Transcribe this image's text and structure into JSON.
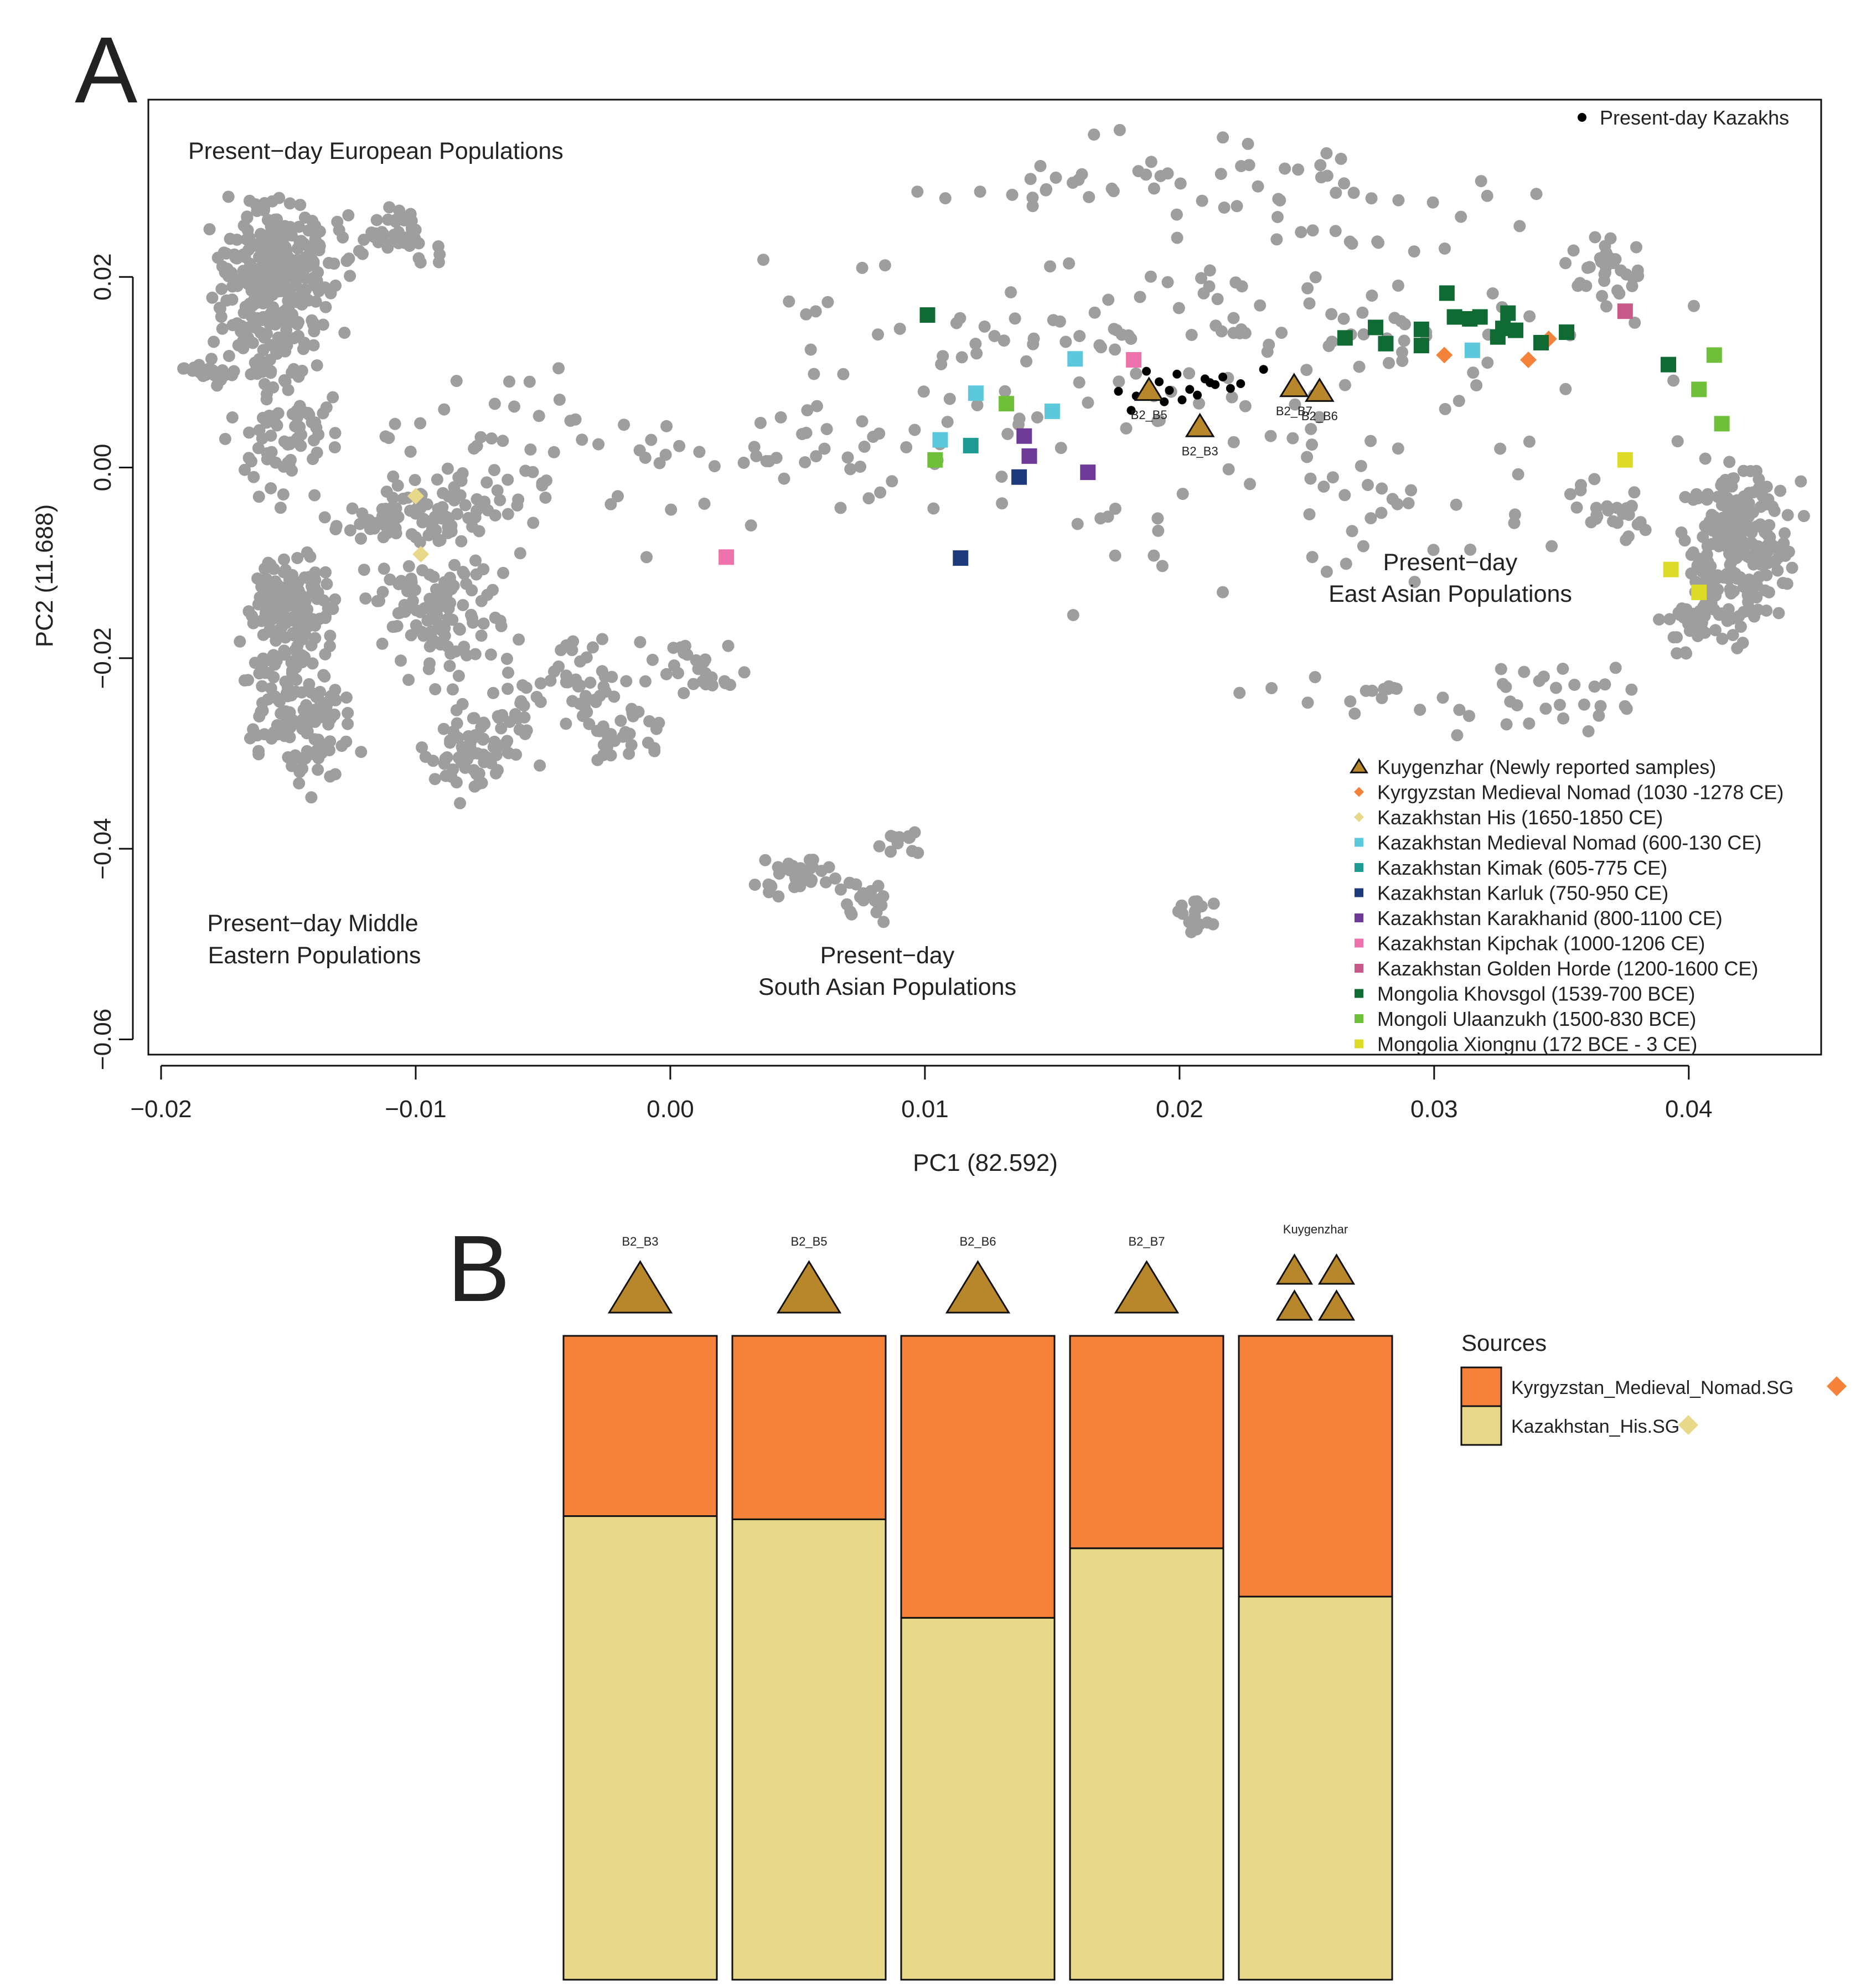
{
  "colors": {
    "background": "#9e9e9e",
    "kazakhs": "#000000",
    "kuygenzhar": "#b8862b",
    "kyrgyzstan_medieval_nomad": "#f4823a",
    "kazakhstan_his": "#e8d98a",
    "kazakhstan_medieval_nomad": "#5bc8dc",
    "kazakhstan_kimak": "#1e9a92",
    "kazakhstan_karluk": "#1f3a7a",
    "kazakhstan_karakhanid": "#6e3a98",
    "kazakhstan_kipchak": "#ee72ac",
    "kazakhstan_golden_horde": "#c85a8a",
    "mongolia_khovsgol": "#0f6b33",
    "mongoli_ulaanzukh": "#6fbf3a",
    "mongolia_xiongnu": "#dcdc28",
    "bar_orange": "#f4823a",
    "bar_yellow": "#e8d98a"
  },
  "panel_a": {
    "letter": "A",
    "regions": {
      "european": "Present−day European Populations",
      "middle_eastern_1": "Present−day  Middle",
      "middle_eastern_2": "Eastern Populations",
      "south_asian_1": "Present−day",
      "south_asian_2": "South Asian Populations",
      "east_asian_1": "Present−day",
      "east_asian_2": "East Asian Populations"
    },
    "kazakhs_legend": "Present-day Kazakhs",
    "legend": [
      {
        "label": "Kuygenzhar (Newly reported samples)",
        "color": "#b8862b",
        "shape": "triangle"
      },
      {
        "label": "Kyrgyzstan Medieval Nomad (1030 -1278 CE)",
        "color": "#f4823a",
        "shape": "diamond"
      },
      {
        "label": "Kazakhstan His (1650-1850 CE)",
        "color": "#e8d98a",
        "shape": "diamond"
      },
      {
        "label": "Kazakhstan Medieval Nomad (600-130 CE)",
        "color": "#5bc8dc",
        "shape": "square"
      },
      {
        "label": "Kazakhstan Kimak (605-775 CE)",
        "color": "#1e9a92",
        "shape": "square"
      },
      {
        "label": "Kazakhstan Karluk (750-950 CE)",
        "color": "#1f3a7a",
        "shape": "square"
      },
      {
        "label": "Kazakhstan Karakhanid (800-1100 CE)",
        "color": "#6e3a98",
        "shape": "square"
      },
      {
        "label": "Kazakhstan Kipchak (1000-1206 CE)",
        "color": "#ee72ac",
        "shape": "square"
      },
      {
        "label": "Kazakhstan Golden Horde (1200-1600 CE)",
        "color": "#c85a8a",
        "shape": "square"
      },
      {
        "label": "Mongolia Khovsgol (1539-700 BCE)",
        "color": "#0f6b33",
        "shape": "square"
      },
      {
        "label": "Mongoli Ulaanzukh (1500-830 BCE)",
        "color": "#6fbf3a",
        "shape": "square"
      },
      {
        "label": "Mongolia Xiongnu (172 BCE - 3 CE)",
        "color": "#dcdc28",
        "shape": "square"
      }
    ]
  },
  "panel_b": {
    "letter": "B",
    "sources_title": "Sources",
    "sources": [
      {
        "label": "Kyrgyzstan_Medieval_Nomad.SG",
        "color": "#f4823a"
      },
      {
        "label": "Kazakhstan_His.SG",
        "color": "#e8d98a"
      }
    ]
  },
  "chart_data": [
    {
      "type": "scatter",
      "title": "",
      "xlabel": "PC1 (82.592)",
      "ylabel": "PC2 (11.688)",
      "xlim": [
        -0.0205,
        0.0452
      ],
      "ylim": [
        -0.0616,
        0.0386
      ],
      "xticks": [
        -0.02,
        -0.01,
        0.0,
        0.01,
        0.02,
        0.03,
        0.04
      ],
      "xtick_labels": [
        "−0.02",
        "−0.01",
        "0.00",
        "0.01",
        "0.02",
        "0.03",
        "0.04"
      ],
      "yticks": [
        0.02,
        0.0,
        -0.02,
        -0.04,
        -0.06
      ],
      "ytick_labels": [
        "0.02",
        "0.00",
        "−0.02",
        "−0.04",
        "−0.06"
      ],
      "series": [
        {
          "name": "Present-day Kazakhs",
          "key": "kazakhs",
          "shape": "circle",
          "points": [
            [
              0.0176,
              0.008
            ],
            [
              0.0183,
              0.0075
            ],
            [
              0.0187,
              0.0101
            ],
            [
              0.0192,
              0.009
            ],
            [
              0.0196,
              0.0081
            ],
            [
              0.0199,
              0.0098
            ],
            [
              0.0201,
              0.0071
            ],
            [
              0.0204,
              0.0082
            ],
            [
              0.0207,
              0.0076
            ],
            [
              0.021,
              0.0093
            ],
            [
              0.0214,
              0.0087
            ],
            [
              0.0217,
              0.0095
            ],
            [
              0.022,
              0.0083
            ],
            [
              0.0224,
              0.0088
            ],
            [
              0.0233,
              0.0103
            ],
            [
              0.0181,
              0.006
            ],
            [
              0.0194,
              0.0069
            ],
            [
              0.0212,
              0.0089
            ]
          ]
        },
        {
          "name": "Kuygenzhar (Newly reported samples)",
          "key": "kuygenzhar",
          "shape": "triangle",
          "points": [
            [
              0.0208,
              0.0043,
              "B2_B3"
            ],
            [
              0.0188,
              0.0081,
              "B2_B5"
            ],
            [
              0.0255,
              0.008,
              "B2_B6"
            ],
            [
              0.0245,
              0.0085,
              "B2_B7"
            ]
          ]
        },
        {
          "name": "Kyrgyzstan Medieval Nomad (1030 -1278 CE)",
          "key": "kyrgyzstan_medieval_nomad",
          "shape": "diamond",
          "points": [
            [
              0.0304,
              0.0118
            ],
            [
              0.0337,
              0.0113
            ],
            [
              0.0345,
              0.0135
            ]
          ]
        },
        {
          "name": "Kazakhstan His (1650-1850 CE)",
          "key": "kazakhstan_his",
          "shape": "diamond",
          "points": [
            [
              -0.01,
              -0.003
            ],
            [
              -0.0098,
              -0.0091
            ]
          ]
        },
        {
          "name": "Kazakhstan Medieval Nomad (600-130 CE)",
          "key": "kazakhstan_medieval_nomad",
          "shape": "square",
          "points": [
            [
              0.0106,
              0.0029
            ],
            [
              0.012,
              0.0078
            ],
            [
              0.015,
              0.0059
            ],
            [
              0.0159,
              0.0114
            ],
            [
              0.0315,
              0.0123
            ]
          ]
        },
        {
          "name": "Kazakhstan Kimak (605-775 CE)",
          "key": "kazakhstan_kimak",
          "shape": "square",
          "points": [
            [
              0.0118,
              0.0023
            ]
          ]
        },
        {
          "name": "Kazakhstan Karluk (750-950 CE)",
          "key": "kazakhstan_karluk",
          "shape": "square",
          "points": [
            [
              0.0114,
              -0.0095
            ],
            [
              0.0137,
              -0.001
            ]
          ]
        },
        {
          "name": "Kazakhstan Karakhanid (800-1100 CE)",
          "key": "kazakhstan_karakhanid",
          "shape": "square",
          "points": [
            [
              0.0139,
              0.0033
            ],
            [
              0.0141,
              0.0012
            ],
            [
              0.0164,
              -0.0005
            ]
          ]
        },
        {
          "name": "Kazakhstan Kipchak (1000-1206 CE)",
          "key": "kazakhstan_kipchak",
          "shape": "square",
          "points": [
            [
              0.0022,
              -0.0094
            ],
            [
              0.0182,
              0.0113
            ]
          ]
        },
        {
          "name": "Kazakhstan Golden Horde (1200-1600 CE)",
          "key": "kazakhstan_golden_horde",
          "shape": "square",
          "points": [
            [
              0.0375,
              0.0164
            ]
          ]
        },
        {
          "name": "Mongolia Khovsgol (1539-700 BCE)",
          "key": "mongolia_khovsgol",
          "shape": "square",
          "points": [
            [
              0.0101,
              0.016
            ],
            [
              0.0265,
              0.0136
            ],
            [
              0.0277,
              0.0147
            ],
            [
              0.0281,
              0.013
            ],
            [
              0.0295,
              0.0145
            ],
            [
              0.0295,
              0.0128
            ],
            [
              0.0305,
              0.0183
            ],
            [
              0.0308,
              0.0158
            ],
            [
              0.0314,
              0.0156
            ],
            [
              0.0318,
              0.0158
            ],
            [
              0.0325,
              0.0137
            ],
            [
              0.0327,
              0.0146
            ],
            [
              0.0329,
              0.0162
            ],
            [
              0.0332,
              0.0144
            ],
            [
              0.0342,
              0.0131
            ],
            [
              0.0352,
              0.0142
            ],
            [
              0.0392,
              0.0108
            ]
          ]
        },
        {
          "name": "Mongoli Ulaanzukh (1500-830 BCE)",
          "key": "mongoli_ulaanzukh",
          "shape": "square",
          "points": [
            [
              0.0104,
              0.0008
            ],
            [
              0.0132,
              0.0067
            ],
            [
              0.0404,
              0.0082
            ],
            [
              0.041,
              0.0118
            ],
            [
              0.0413,
              0.0046
            ]
          ]
        },
        {
          "name": "Mongolia Xiongnu (172 BCE - 3 CE)",
          "key": "mongolia_xiongnu",
          "shape": "square",
          "points": [
            [
              0.0375,
              0.0008
            ],
            [
              0.0393,
              -0.0107
            ],
            [
              0.0404,
              -0.0131
            ]
          ]
        }
      ]
    },
    {
      "type": "bar",
      "stacked": true,
      "title": "",
      "categories": [
        "B2_B3",
        "B2_B5",
        "B2_B6",
        "B2_B7",
        "Kuygenzhar"
      ],
      "ylim": [
        0,
        1
      ],
      "series": [
        {
          "name": "Kyrgyzstan_Medieval_Nomad.SG",
          "values": [
            0.28,
            0.285,
            0.438,
            0.33,
            0.405
          ]
        },
        {
          "name": "Kazakhstan_His.SG",
          "values": [
            0.72,
            0.715,
            0.562,
            0.67,
            0.595
          ]
        }
      ]
    }
  ]
}
